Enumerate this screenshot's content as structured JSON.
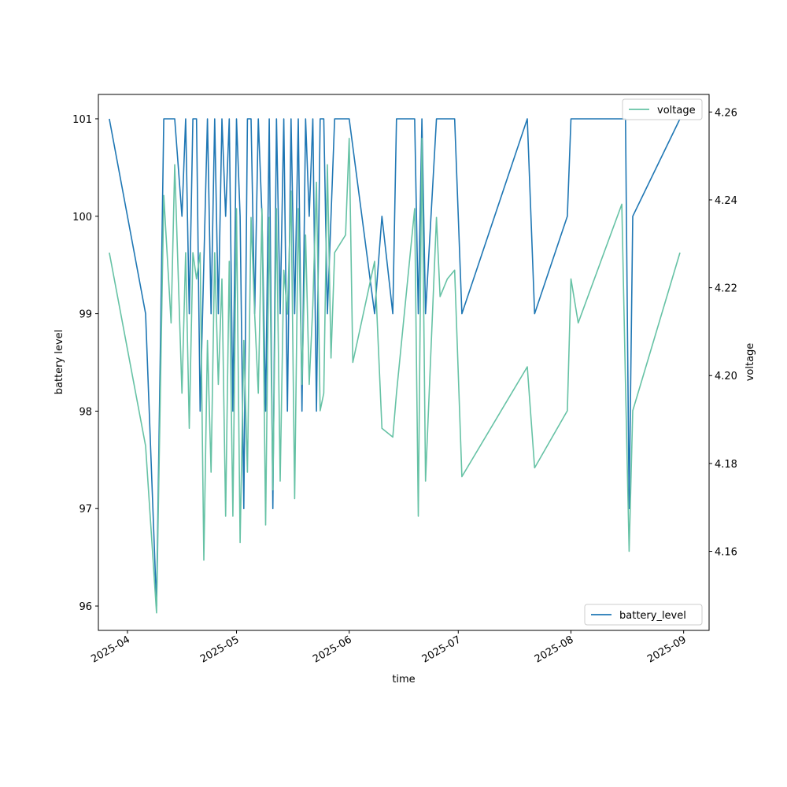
{
  "chart_data": {
    "type": "line",
    "xlabel": "time",
    "ylabel_left": "battery level",
    "ylabel_right": "voltage",
    "x_ticks": [
      "2025-04",
      "2025-05",
      "2025-06",
      "2025-07",
      "2025-08",
      "2025-09"
    ],
    "x_tick_dates": [
      "2025-04-01",
      "2025-05-01",
      "2025-06-01",
      "2025-07-01",
      "2025-08-01",
      "2025-09-01"
    ],
    "xlim": [
      "2025-03-24",
      "2025-09-08"
    ],
    "y_left_ticks": [
      96,
      97,
      98,
      99,
      100,
      101
    ],
    "y_left_lim": [
      95.75,
      101.25
    ],
    "y_right_ticks": [
      "4.16",
      "4.18",
      "4.20",
      "4.22",
      "4.24",
      "4.26"
    ],
    "y_right_lim": [
      4.142,
      4.264
    ],
    "series": [
      {
        "name": "battery_level",
        "axis": "left",
        "color": "#1f77b4",
        "x": [
          "2025-03-27",
          "2025-04-06",
          "2025-04-09",
          "2025-04-11",
          "2025-04-14",
          "2025-04-16",
          "2025-04-17",
          "2025-04-18",
          "2025-04-19",
          "2025-04-20",
          "2025-04-21",
          "2025-04-23",
          "2025-04-24",
          "2025-04-25",
          "2025-04-26",
          "2025-04-27",
          "2025-04-28",
          "2025-04-29",
          "2025-04-30",
          "2025-05-01",
          "2025-05-02",
          "2025-05-03",
          "2025-05-04",
          "2025-05-05",
          "2025-05-06",
          "2025-05-07",
          "2025-05-08",
          "2025-05-09",
          "2025-05-10",
          "2025-05-11",
          "2025-05-12",
          "2025-05-13",
          "2025-05-14",
          "2025-05-15",
          "2025-05-16",
          "2025-05-17",
          "2025-05-18",
          "2025-05-19",
          "2025-05-20",
          "2025-05-21",
          "2025-05-22",
          "2025-05-23",
          "2025-05-24",
          "2025-05-25",
          "2025-05-26",
          "2025-05-27",
          "2025-05-28",
          "2025-05-29",
          "2025-05-31",
          "2025-06-01",
          "2025-06-08",
          "2025-06-10",
          "2025-06-13",
          "2025-06-14",
          "2025-06-19",
          "2025-06-20",
          "2025-06-21",
          "2025-06-22",
          "2025-06-25",
          "2025-06-26",
          "2025-06-30",
          "2025-07-02",
          "2025-07-20",
          "2025-07-22",
          "2025-07-31",
          "2025-08-01",
          "2025-08-15",
          "2025-08-16",
          "2025-08-17",
          "2025-08-18",
          "2025-08-31"
        ],
        "values": [
          101,
          99,
          96,
          101,
          101,
          100,
          101,
          99,
          101,
          101,
          98,
          101,
          99,
          101,
          99,
          101,
          100,
          101,
          98,
          101,
          100,
          97,
          101,
          101,
          99,
          101,
          100,
          98,
          101,
          97,
          101,
          99,
          101,
          98,
          101,
          99,
          101,
          98,
          101,
          100,
          101,
          98,
          101,
          101,
          99,
          100,
          101,
          101,
          101,
          101,
          99,
          100,
          99,
          101,
          101,
          99,
          101,
          99,
          101,
          101,
          101,
          99,
          101,
          99,
          100,
          101,
          101,
          101,
          97,
          100,
          101
        ]
      },
      {
        "name": "voltage",
        "axis": "right",
        "color": "#66c2a5",
        "x": [
          "2025-03-27",
          "2025-04-06",
          "2025-04-09",
          "2025-04-11",
          "2025-04-13",
          "2025-04-14",
          "2025-04-16",
          "2025-04-17",
          "2025-04-18",
          "2025-04-19",
          "2025-04-20",
          "2025-04-21",
          "2025-04-22",
          "2025-04-23",
          "2025-04-24",
          "2025-04-25",
          "2025-04-26",
          "2025-04-27",
          "2025-04-28",
          "2025-04-29",
          "2025-04-30",
          "2025-05-01",
          "2025-05-02",
          "2025-05-03",
          "2025-05-04",
          "2025-05-05",
          "2025-05-06",
          "2025-05-07",
          "2025-05-08",
          "2025-05-09",
          "2025-05-10",
          "2025-05-11",
          "2025-05-12",
          "2025-05-13",
          "2025-05-14",
          "2025-05-15",
          "2025-05-16",
          "2025-05-17",
          "2025-05-18",
          "2025-05-19",
          "2025-05-20",
          "2025-05-21",
          "2025-05-22",
          "2025-05-23",
          "2025-05-24",
          "2025-05-25",
          "2025-05-26",
          "2025-05-27",
          "2025-05-28",
          "2025-05-31",
          "2025-06-01",
          "2025-06-02",
          "2025-06-08",
          "2025-06-10",
          "2025-06-13",
          "2025-06-14",
          "2025-06-19",
          "2025-06-20",
          "2025-06-21",
          "2025-06-22",
          "2025-06-25",
          "2025-06-26",
          "2025-06-28",
          "2025-06-30",
          "2025-07-02",
          "2025-07-20",
          "2025-07-22",
          "2025-07-31",
          "2025-08-01",
          "2025-08-03",
          "2025-08-15",
          "2025-08-16",
          "2025-08-17",
          "2025-08-18",
          "2025-08-31"
        ],
        "values": [
          4.228,
          4.184,
          4.146,
          4.241,
          4.212,
          4.248,
          4.196,
          4.228,
          4.188,
          4.228,
          4.222,
          4.228,
          4.158,
          4.208,
          4.178,
          4.228,
          4.198,
          4.222,
          4.168,
          4.226,
          4.168,
          4.238,
          4.162,
          4.208,
          4.178,
          4.236,
          4.214,
          4.196,
          4.238,
          4.166,
          4.236,
          4.174,
          4.238,
          4.176,
          4.224,
          4.214,
          4.242,
          4.172,
          4.238,
          4.198,
          4.232,
          4.198,
          4.216,
          4.244,
          4.192,
          4.196,
          4.248,
          4.204,
          4.228,
          4.232,
          4.254,
          4.203,
          4.226,
          4.188,
          4.186,
          4.196,
          4.238,
          4.168,
          4.254,
          4.176,
          4.236,
          4.218,
          4.222,
          4.224,
          4.177,
          4.202,
          4.179,
          4.192,
          4.222,
          4.212,
          4.239,
          4.198,
          4.16,
          4.192,
          4.228
        ]
      }
    ],
    "legends": [
      {
        "series": "voltage",
        "placement": "upper right"
      },
      {
        "series": "battery_level",
        "placement": "lower right"
      }
    ]
  }
}
